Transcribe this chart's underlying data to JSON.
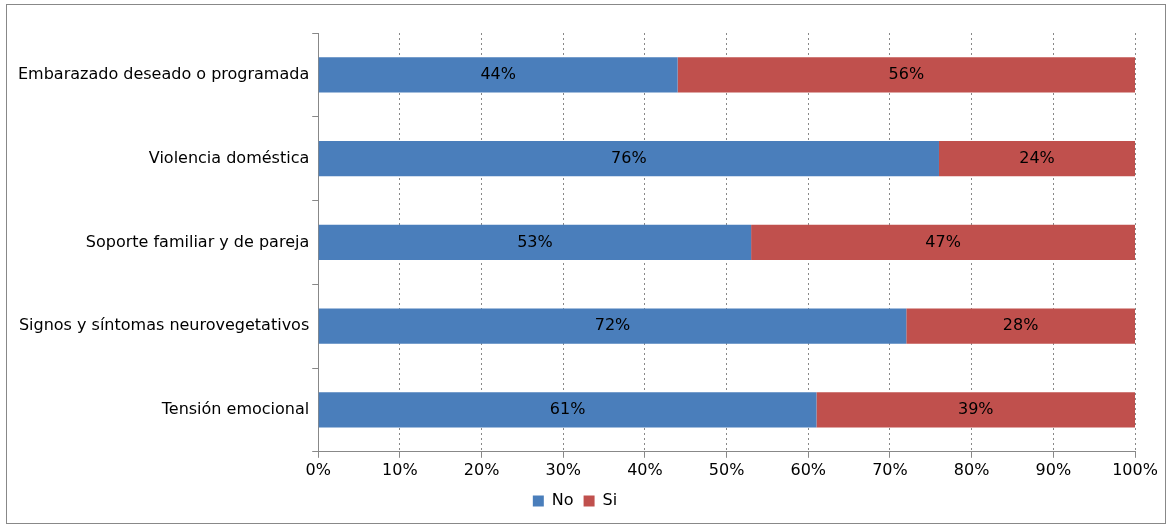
{
  "chart_data": {
    "type": "bar",
    "orientation": "horizontal",
    "stacked": true,
    "categories": [
      "Embarazado deseado o programada",
      "Violencia doméstica",
      "Soporte familiar y de pareja",
      "Signos y síntomas neurovegetativos",
      "Tensión emocional"
    ],
    "series": [
      {
        "name": "No",
        "color": "#4a7ebb",
        "values": [
          44,
          76,
          53,
          72,
          61
        ],
        "value_labels": [
          "44%",
          "76%",
          "53%",
          "72%",
          "61%"
        ]
      },
      {
        "name": "Si",
        "color": "#c0504d",
        "values": [
          56,
          24,
          47,
          28,
          39
        ],
        "value_labels": [
          "56%",
          "24%",
          "47%",
          "28%",
          "39%"
        ]
      }
    ],
    "xlim": [
      0,
      100
    ],
    "xticks": [
      {
        "value": 0,
        "label": "0%"
      },
      {
        "value": 10,
        "label": "10%"
      },
      {
        "value": 20,
        "label": "20%"
      },
      {
        "value": 30,
        "label": "30%"
      },
      {
        "value": 40,
        "label": "40%"
      },
      {
        "value": 50,
        "label": "50%"
      },
      {
        "value": 60,
        "label": "60%"
      },
      {
        "value": 70,
        "label": "70%"
      },
      {
        "value": 80,
        "label": "80%"
      },
      {
        "value": 90,
        "label": "90%"
      },
      {
        "value": 100,
        "label": "100%"
      }
    ],
    "grid": "x",
    "legend": "bottom"
  }
}
